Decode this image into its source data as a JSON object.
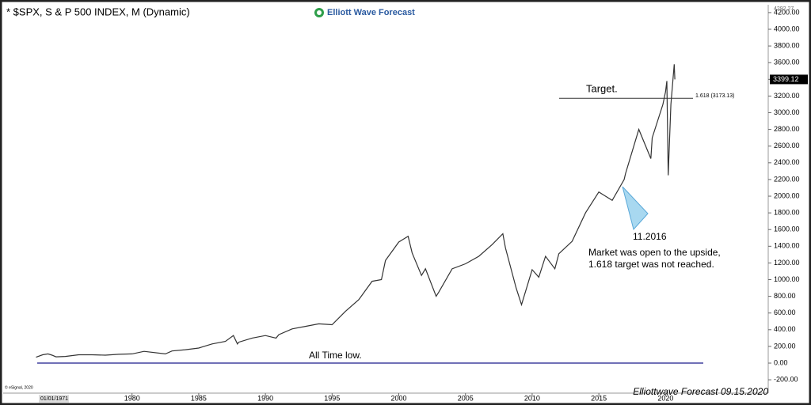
{
  "chart_data": {
    "type": "line",
    "title": "* $SPX, S & P 500 INDEX, M (Dynamic)",
    "brand": "Elliott Wave Forecast",
    "footer": "Elliottwave Forecast  09.15.2020",
    "copyright": "© eSignal, 2020",
    "start_date": "01/01/1971",
    "color": "#333333",
    "xlim": [
      1970.1,
      2027.7
    ],
    "xticks": [
      1980,
      1985,
      1990,
      1995,
      2000,
      2005,
      2010,
      2015,
      2020
    ],
    "ylim": [
      -360,
      4275
    ],
    "yticks": [
      {
        "value": -200,
        "label": "-200.00"
      },
      {
        "value": 0,
        "label": "0.00"
      },
      {
        "value": 200,
        "label": "200.00"
      },
      {
        "value": 400,
        "label": "400.00"
      },
      {
        "value": 600,
        "label": "600.00"
      },
      {
        "value": 800,
        "label": "800.00"
      },
      {
        "value": 1000,
        "label": "1000.00"
      },
      {
        "value": 1200,
        "label": "1200.00"
      },
      {
        "value": 1400,
        "label": "1400.00"
      },
      {
        "value": 1600,
        "label": "1600.00"
      },
      {
        "value": 1800,
        "label": "1800.00"
      },
      {
        "value": 2000,
        "label": "2000.00"
      },
      {
        "value": 2200,
        "label": "2200.00"
      },
      {
        "value": 2400,
        "label": "2400.00"
      },
      {
        "value": 2600,
        "label": "2600.00"
      },
      {
        "value": 2800,
        "label": "2800.00"
      },
      {
        "value": 3000,
        "label": "3000.00"
      },
      {
        "value": 3200,
        "label": "3200.00"
      },
      {
        "value": 3400,
        "label": "3400.00"
      },
      {
        "value": 3600,
        "label": "3600.00"
      },
      {
        "value": 3800,
        "label": "3800.00"
      },
      {
        "value": 4000,
        "label": "4000.00"
      },
      {
        "value": 4200,
        "label": "4200.00"
      }
    ],
    "high_price": 4292.27,
    "last_price": 3399.12,
    "x": [
      1972.8,
      1973.3,
      1973.7,
      1974.0,
      1974.3,
      1975,
      1976,
      1977,
      1978,
      1979,
      1980,
      1980.9,
      1982.5,
      1983,
      1984,
      1985,
      1986,
      1987,
      1987.6,
      1987.9,
      1988,
      1989,
      1990,
      1990.8,
      1991,
      1992,
      1993,
      1994,
      1995,
      1996,
      1997,
      1998,
      1998.7,
      1999,
      2000,
      2000.7,
      2001,
      2001.7,
      2002,
      2002.8,
      2003,
      2004,
      2005,
      2006,
      2007,
      2007.8,
      2008,
      2008.8,
      2009.2,
      2010,
      2010.5,
      2011,
      2011.7,
      2012,
      2013,
      2014,
      2015,
      2016,
      2016.9,
      2017,
      2018,
      2018.9,
      2019,
      2019.8,
      2020,
      2020.1,
      2020.2,
      2020.4,
      2020.65,
      2020.7
    ],
    "values": [
      70,
      100,
      110,
      95,
      75,
      80,
      100,
      100,
      95,
      105,
      110,
      140,
      110,
      145,
      160,
      180,
      230,
      260,
      330,
      230,
      250,
      300,
      330,
      300,
      340,
      410,
      440,
      470,
      460,
      620,
      760,
      980,
      1000,
      1230,
      1450,
      1520,
      1320,
      1050,
      1130,
      800,
      850,
      1130,
      1190,
      1280,
      1420,
      1550,
      1380,
      900,
      700,
      1120,
      1030,
      1280,
      1130,
      1310,
      1460,
      1800,
      2050,
      1950,
      2200,
      2270,
      2800,
      2450,
      2700,
      3100,
      3250,
      3380,
      2250,
      3100,
      3580,
      3399.12
    ],
    "target": {
      "text": "Target.",
      "value": 3173.13,
      "value_label": "1.618 (3173.13)"
    },
    "low_line": {
      "text": "All Time low.",
      "value": 0
    },
    "note": {
      "date": "11.2016",
      "lines": [
        "Market was open to the upside,",
        "1.618 target was not reached."
      ]
    }
  }
}
